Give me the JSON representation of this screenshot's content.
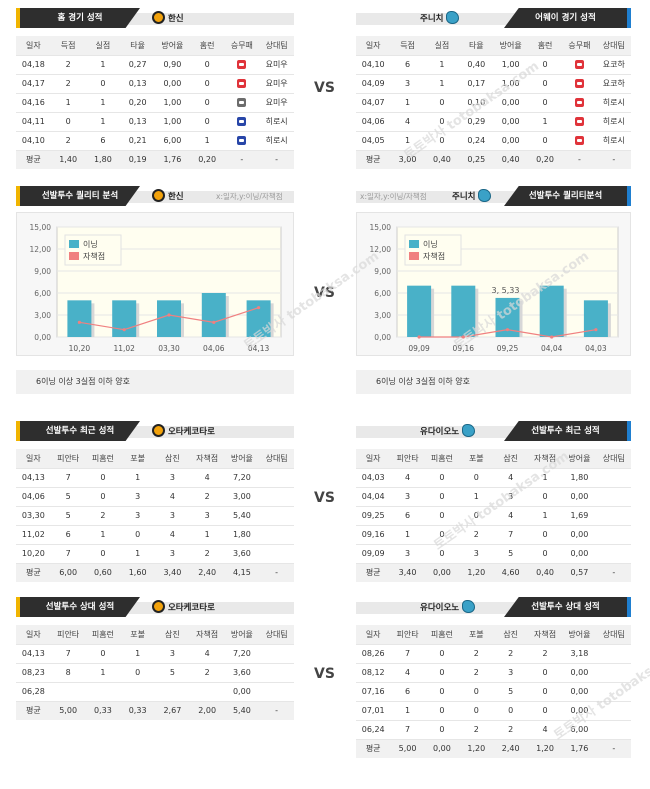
{
  "vs": "VS",
  "cols_team": [
    "일자",
    "득점",
    "실점",
    "타율",
    "방어율",
    "홈런",
    "승무패",
    "상대팀"
  ],
  "cols_pitch": [
    "일자",
    "피안타",
    "피홈런",
    "포볼",
    "삼진",
    "자책점",
    "방어율",
    "상대팀"
  ],
  "home": {
    "title": "홈 경기 성적",
    "team": "한신",
    "rows": [
      [
        "04,18",
        "2",
        "1",
        "0,27",
        "0,90",
        "0",
        "r",
        "요미우"
      ],
      [
        "04,17",
        "2",
        "0",
        "0,13",
        "0,00",
        "0",
        "r",
        "요미우"
      ],
      [
        "04,16",
        "1",
        "1",
        "0,20",
        "1,00",
        "0",
        "g",
        "요미우"
      ],
      [
        "04,11",
        "0",
        "1",
        "0,13",
        "1,00",
        "0",
        "u",
        "히로시"
      ],
      [
        "04,10",
        "2",
        "6",
        "0,21",
        "6,00",
        "1",
        "u",
        "히로시"
      ]
    ],
    "avg": [
      "평균",
      "1,40",
      "1,80",
      "0,19",
      "1,76",
      "0,20",
      "-",
      "-"
    ]
  },
  "away": {
    "title": "어웨이 경기 성적",
    "team": "주니치",
    "rows": [
      [
        "04,10",
        "6",
        "1",
        "0,40",
        "1,00",
        "0",
        "r",
        "요코하"
      ],
      [
        "04,09",
        "3",
        "1",
        "0,17",
        "1,00",
        "0",
        "r",
        "요코하"
      ],
      [
        "04,07",
        "1",
        "0",
        "0,10",
        "0,00",
        "0",
        "r",
        "히로시"
      ],
      [
        "04,06",
        "4",
        "0",
        "0,29",
        "0,00",
        "1",
        "r",
        "히로시"
      ],
      [
        "04,05",
        "1",
        "0",
        "0,24",
        "0,00",
        "0",
        "r",
        "히로시"
      ]
    ],
    "avg": [
      "평균",
      "3,00",
      "0,40",
      "0,25",
      "0,40",
      "0,20",
      "-",
      "-"
    ]
  },
  "q_left": {
    "title": "선발투수 퀄리티 분석",
    "team": "한신",
    "caption": "x:일자,y:이닝/자책점",
    "note": "6이닝 이상 3실점 이하 양호"
  },
  "q_right": {
    "title": "선발투수 퀄리티분석",
    "team": "주니치",
    "caption": "x:일자,y:이닝/자책점",
    "note": "6이닝 이상 3실점 이하 양호",
    "tooltip": "3, 5,33"
  },
  "chart_data": [
    {
      "type": "bar",
      "categories": [
        "10,20",
        "11,02",
        "03,30",
        "04,06",
        "04,13"
      ],
      "series": [
        {
          "name": "이닝",
          "values": [
            5,
            5,
            5,
            6,
            5
          ]
        },
        {
          "name": "자책점",
          "values": [
            2,
            1,
            3,
            2,
            4
          ]
        }
      ],
      "yticks": [
        "0,00",
        "3,00",
        "6,00",
        "9,00",
        "12,00",
        "15,00"
      ],
      "ylim": [
        0,
        15
      ]
    },
    {
      "type": "bar",
      "categories": [
        "09,09",
        "09,16",
        "09,25",
        "04,04",
        "04,03"
      ],
      "series": [
        {
          "name": "이닝",
          "values": [
            7,
            7,
            5.33,
            7,
            5
          ]
        },
        {
          "name": "자책점",
          "values": [
            0,
            0,
            1,
            0,
            1
          ]
        }
      ],
      "yticks": [
        "0,00",
        "3,00",
        "6,00",
        "9,00",
        "12,00",
        "15,00"
      ],
      "ylim": [
        0,
        15
      ]
    }
  ],
  "recent_left": {
    "title": "선발투수 최근 성적",
    "team": "오타케코타로",
    "rows": [
      [
        "04,13",
        "7",
        "0",
        "1",
        "3",
        "4",
        "7,20"
      ],
      [
        "04,06",
        "5",
        "0",
        "3",
        "4",
        "2",
        "3,00"
      ],
      [
        "03,30",
        "5",
        "2",
        "3",
        "3",
        "3",
        "5,40"
      ],
      [
        "11,02",
        "6",
        "1",
        "0",
        "4",
        "1",
        "1,80"
      ],
      [
        "10,20",
        "7",
        "0",
        "1",
        "3",
        "2",
        "3,60"
      ]
    ],
    "avg": [
      "평균",
      "6,00",
      "0,60",
      "1,60",
      "3,40",
      "2,40",
      "4,15",
      "-"
    ]
  },
  "recent_right": {
    "title": "선발투수 최근 성적",
    "team": "유다이오노",
    "rows": [
      [
        "04,03",
        "4",
        "0",
        "0",
        "4",
        "1",
        "1,80"
      ],
      [
        "04,04",
        "3",
        "0",
        "1",
        "3",
        "0",
        "0,00"
      ],
      [
        "09,25",
        "6",
        "0",
        "0",
        "4",
        "1",
        "1,69"
      ],
      [
        "09,16",
        "1",
        "0",
        "2",
        "7",
        "0",
        "0,00"
      ],
      [
        "09,09",
        "3",
        "0",
        "3",
        "5",
        "0",
        "0,00"
      ]
    ],
    "avg": [
      "평균",
      "3,40",
      "0,00",
      "1,20",
      "4,60",
      "0,40",
      "0,57",
      "-"
    ]
  },
  "opp_left": {
    "title": "선발투수 상대 성적",
    "team": "오타케코타로",
    "rows": [
      [
        "04,13",
        "7",
        "0",
        "1",
        "3",
        "4",
        "7,20"
      ],
      [
        "08,23",
        "8",
        "1",
        "0",
        "5",
        "2",
        "3,60"
      ],
      [
        "06,28",
        "",
        "",
        "",
        "",
        "",
        "0,00"
      ]
    ],
    "avg": [
      "평균",
      "5,00",
      "0,33",
      "0,33",
      "2,67",
      "2,00",
      "5,40",
      "-"
    ]
  },
  "opp_right": {
    "title": "선발투수 상대 성적",
    "team": "유다이오노",
    "rows": [
      [
        "08,26",
        "7",
        "0",
        "2",
        "2",
        "2",
        "3,18"
      ],
      [
        "08,12",
        "4",
        "0",
        "2",
        "3",
        "0",
        "0,00"
      ],
      [
        "07,16",
        "6",
        "0",
        "0",
        "5",
        "0",
        "0,00"
      ],
      [
        "07,01",
        "1",
        "0",
        "0",
        "0",
        "0",
        "0,00"
      ],
      [
        "06,24",
        "7",
        "0",
        "2",
        "2",
        "4",
        "6,00"
      ]
    ],
    "avg": [
      "평균",
      "5,00",
      "0,00",
      "1,20",
      "2,40",
      "1,20",
      "1,76",
      "-"
    ]
  },
  "watermark": "토토박사 totobaksa.com"
}
